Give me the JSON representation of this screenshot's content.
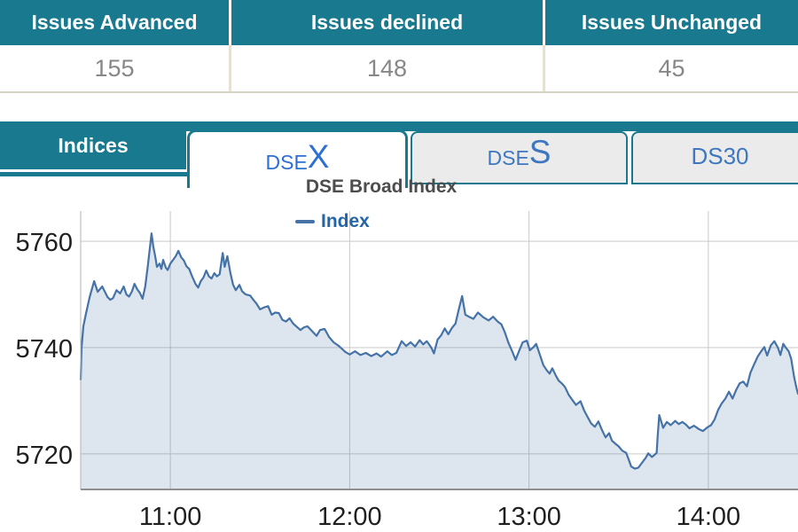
{
  "colors": {
    "teal": "#18798f",
    "active_tab_text": "#2e6fd3",
    "inactive_tab_text": "#3e77c0",
    "line": "#4572a7",
    "legend_text": "#2366a8"
  },
  "summary_table": {
    "columns": [
      {
        "header": "Issues Advanced",
        "value": "155"
      },
      {
        "header": "Issues declined",
        "value": "148"
      },
      {
        "header": "Issues Unchanged",
        "value": "45"
      }
    ]
  },
  "tabs_bar": {
    "section_label": "Indices",
    "tabs": [
      {
        "prefix": "DSE",
        "suffix": "X",
        "active": true
      },
      {
        "prefix": "DSE",
        "suffix": "S",
        "active": false
      },
      {
        "prefix": "DS30",
        "suffix": "",
        "active": false
      }
    ]
  },
  "chart_data": {
    "type": "area",
    "title": "DSE Broad Index",
    "legend_label": "Index",
    "legend_position": "top",
    "xlabel": "",
    "ylabel": "",
    "grid": true,
    "xlim": [
      10.5,
      14.5
    ],
    "ylim": [
      5713.3,
      5765.7
    ],
    "x_ticks": [
      {
        "v": 11,
        "label": "11:00"
      },
      {
        "v": 12,
        "label": "12:00"
      },
      {
        "v": 13,
        "label": "13:00"
      },
      {
        "v": 14,
        "label": "14:00"
      }
    ],
    "y_ticks": [
      {
        "v": 5720,
        "label": "5720"
      },
      {
        "v": 5740,
        "label": "5740"
      },
      {
        "v": 5760,
        "label": "5760"
      }
    ],
    "line_color": "#4572a7",
    "fill_color": "rgba(69,114,167,0.18)",
    "points": [
      [
        10.5,
        5734.0
      ],
      [
        10.505,
        5740.0
      ],
      [
        10.515,
        5744.0
      ],
      [
        10.53,
        5746.5
      ],
      [
        10.55,
        5749.5
      ],
      [
        10.575,
        5752.5
      ],
      [
        10.595,
        5750.5
      ],
      [
        10.62,
        5751.5
      ],
      [
        10.65,
        5749.5
      ],
      [
        10.665,
        5749.0
      ],
      [
        10.68,
        5749.3
      ],
      [
        10.7,
        5750.8
      ],
      [
        10.72,
        5750.2
      ],
      [
        10.74,
        5751.5
      ],
      [
        10.755,
        5750.0
      ],
      [
        10.77,
        5749.6
      ],
      [
        10.785,
        5750.5
      ],
      [
        10.8,
        5752.0
      ],
      [
        10.815,
        5751.0
      ],
      [
        10.83,
        5750.3
      ],
      [
        10.845,
        5749.2
      ],
      [
        10.86,
        5751.5
      ],
      [
        10.875,
        5755.5
      ],
      [
        10.895,
        5761.5
      ],
      [
        10.905,
        5759.0
      ],
      [
        10.915,
        5757.3
      ],
      [
        10.925,
        5755.2
      ],
      [
        10.94,
        5755.8
      ],
      [
        10.95,
        5754.8
      ],
      [
        10.96,
        5756.5
      ],
      [
        10.975,
        5755.0
      ],
      [
        10.985,
        5754.6
      ],
      [
        11.0,
        5755.8
      ],
      [
        11.015,
        5756.5
      ],
      [
        11.03,
        5757.2
      ],
      [
        11.045,
        5758.2
      ],
      [
        11.06,
        5757.0
      ],
      [
        11.075,
        5756.4
      ],
      [
        11.09,
        5755.3
      ],
      [
        11.105,
        5754.8
      ],
      [
        11.12,
        5753.5
      ],
      [
        11.14,
        5752.0
      ],
      [
        11.155,
        5751.3
      ],
      [
        11.17,
        5752.5
      ],
      [
        11.185,
        5753.2
      ],
      [
        11.2,
        5754.5
      ],
      [
        11.215,
        5753.4
      ],
      [
        11.23,
        5753.0
      ],
      [
        11.245,
        5754.0
      ],
      [
        11.26,
        5753.4
      ],
      [
        11.275,
        5753.8
      ],
      [
        11.292,
        5757.8
      ],
      [
        11.303,
        5755.2
      ],
      [
        11.318,
        5757.2
      ],
      [
        11.335,
        5754.0
      ],
      [
        11.35,
        5751.8
      ],
      [
        11.365,
        5750.8
      ],
      [
        11.385,
        5751.8
      ],
      [
        11.4,
        5750.6
      ],
      [
        11.42,
        5750.0
      ],
      [
        11.445,
        5749.8
      ],
      [
        11.465,
        5748.9
      ],
      [
        11.48,
        5748.3
      ],
      [
        11.5,
        5747.2
      ],
      [
        11.525,
        5747.6
      ],
      [
        11.545,
        5747.8
      ],
      [
        11.565,
        5746.2
      ],
      [
        11.585,
        5746.6
      ],
      [
        11.605,
        5746.5
      ],
      [
        11.625,
        5745.2
      ],
      [
        11.645,
        5744.9
      ],
      [
        11.665,
        5745.5
      ],
      [
        11.685,
        5744.5
      ],
      [
        11.705,
        5743.9
      ],
      [
        11.725,
        5743.3
      ],
      [
        11.745,
        5743.8
      ],
      [
        11.765,
        5744.0
      ],
      [
        11.79,
        5743.1
      ],
      [
        11.815,
        5742.2
      ],
      [
        11.835,
        5743.3
      ],
      [
        11.86,
        5743.5
      ],
      [
        11.885,
        5742.0
      ],
      [
        11.91,
        5741.0
      ],
      [
        11.94,
        5740.3
      ],
      [
        11.975,
        5739.2
      ],
      [
        12.0,
        5738.7
      ],
      [
        12.03,
        5739.3
      ],
      [
        12.06,
        5738.6
      ],
      [
        12.09,
        5739.0
      ],
      [
        12.12,
        5738.4
      ],
      [
        12.15,
        5738.9
      ],
      [
        12.175,
        5738.3
      ],
      [
        12.21,
        5739.3
      ],
      [
        12.235,
        5738.6
      ],
      [
        12.26,
        5739.0
      ],
      [
        12.29,
        5741.2
      ],
      [
        12.315,
        5740.3
      ],
      [
        12.34,
        5741.0
      ],
      [
        12.365,
        5740.2
      ],
      [
        12.39,
        5741.4
      ],
      [
        12.41,
        5740.6
      ],
      [
        12.43,
        5741.2
      ],
      [
        12.455,
        5740.0
      ],
      [
        12.47,
        5738.9
      ],
      [
        12.49,
        5741.5
      ],
      [
        12.51,
        5742.3
      ],
      [
        12.53,
        5743.6
      ],
      [
        12.55,
        5742.5
      ],
      [
        12.57,
        5743.7
      ],
      [
        12.59,
        5744.5
      ],
      [
        12.61,
        5747.4
      ],
      [
        12.627,
        5749.7
      ],
      [
        12.645,
        5746.2
      ],
      [
        12.665,
        5745.8
      ],
      [
        12.69,
        5745.4
      ],
      [
        12.715,
        5746.6
      ],
      [
        12.745,
        5745.7
      ],
      [
        12.775,
        5745.1
      ],
      [
        12.8,
        5745.8
      ],
      [
        12.825,
        5744.9
      ],
      [
        12.845,
        5744.4
      ],
      [
        12.865,
        5742.9
      ],
      [
        12.885,
        5740.9
      ],
      [
        12.905,
        5739.4
      ],
      [
        12.925,
        5737.7
      ],
      [
        12.945,
        5739.4
      ],
      [
        12.965,
        5741.0
      ],
      [
        12.988,
        5741.3
      ],
      [
        13.005,
        5739.5
      ],
      [
        13.025,
        5740.1
      ],
      [
        13.04,
        5740.7
      ],
      [
        13.06,
        5738.7
      ],
      [
        13.08,
        5736.7
      ],
      [
        13.1,
        5735.7
      ],
      [
        13.115,
        5735.1
      ],
      [
        13.13,
        5736.1
      ],
      [
        13.15,
        5734.7
      ],
      [
        13.165,
        5733.8
      ],
      [
        13.185,
        5733.2
      ],
      [
        13.2,
        5732.6
      ],
      [
        13.22,
        5731.2
      ],
      [
        13.24,
        5730.2
      ],
      [
        13.262,
        5729.2
      ],
      [
        13.287,
        5729.9
      ],
      [
        13.307,
        5728.2
      ],
      [
        13.327,
        5726.9
      ],
      [
        13.347,
        5725.7
      ],
      [
        13.367,
        5725.1
      ],
      [
        13.387,
        5726.1
      ],
      [
        13.407,
        5724.5
      ],
      [
        13.427,
        5723.1
      ],
      [
        13.447,
        5723.9
      ],
      [
        13.462,
        5722.5
      ],
      [
        13.482,
        5721.9
      ],
      [
        13.5,
        5721.4
      ],
      [
        13.52,
        5720.6
      ],
      [
        13.542,
        5720.2
      ],
      [
        13.555,
        5719.0
      ],
      [
        13.57,
        5717.6
      ],
      [
        13.59,
        5717.2
      ],
      [
        13.61,
        5717.4
      ],
      [
        13.63,
        5718.3
      ],
      [
        13.65,
        5719.2
      ],
      [
        13.665,
        5720.1
      ],
      [
        13.685,
        5719.4
      ],
      [
        13.7,
        5719.8
      ],
      [
        13.712,
        5720.2
      ],
      [
        13.718,
        5723.5
      ],
      [
        13.726,
        5727.3
      ],
      [
        13.748,
        5724.9
      ],
      [
        13.768,
        5726.0
      ],
      [
        13.79,
        5725.4
      ],
      [
        13.815,
        5726.2
      ],
      [
        13.835,
        5725.6
      ],
      [
        13.855,
        5726.0
      ],
      [
        13.875,
        5725.5
      ],
      [
        13.895,
        5724.8
      ],
      [
        13.92,
        5725.3
      ],
      [
        13.945,
        5724.7
      ],
      [
        13.97,
        5724.3
      ],
      [
        13.995,
        5725.0
      ],
      [
        14.015,
        5725.4
      ],
      [
        14.035,
        5726.5
      ],
      [
        14.055,
        5728.3
      ],
      [
        14.075,
        5729.5
      ],
      [
        14.095,
        5730.4
      ],
      [
        14.115,
        5731.7
      ],
      [
        14.135,
        5730.4
      ],
      [
        14.155,
        5732.0
      ],
      [
        14.175,
        5733.3
      ],
      [
        14.195,
        5733.6
      ],
      [
        14.215,
        5732.7
      ],
      [
        14.235,
        5735.3
      ],
      [
        14.255,
        5736.8
      ],
      [
        14.275,
        5738.3
      ],
      [
        14.295,
        5739.3
      ],
      [
        14.312,
        5740.1
      ],
      [
        14.328,
        5738.5
      ],
      [
        14.348,
        5740.4
      ],
      [
        14.368,
        5741.2
      ],
      [
        14.388,
        5740.0
      ],
      [
        14.402,
        5738.6
      ],
      [
        14.418,
        5740.7
      ],
      [
        14.432,
        5740.0
      ],
      [
        14.448,
        5739.3
      ],
      [
        14.462,
        5737.9
      ],
      [
        14.478,
        5734.5
      ],
      [
        14.492,
        5732.3
      ],
      [
        14.5,
        5731.3
      ]
    ]
  }
}
